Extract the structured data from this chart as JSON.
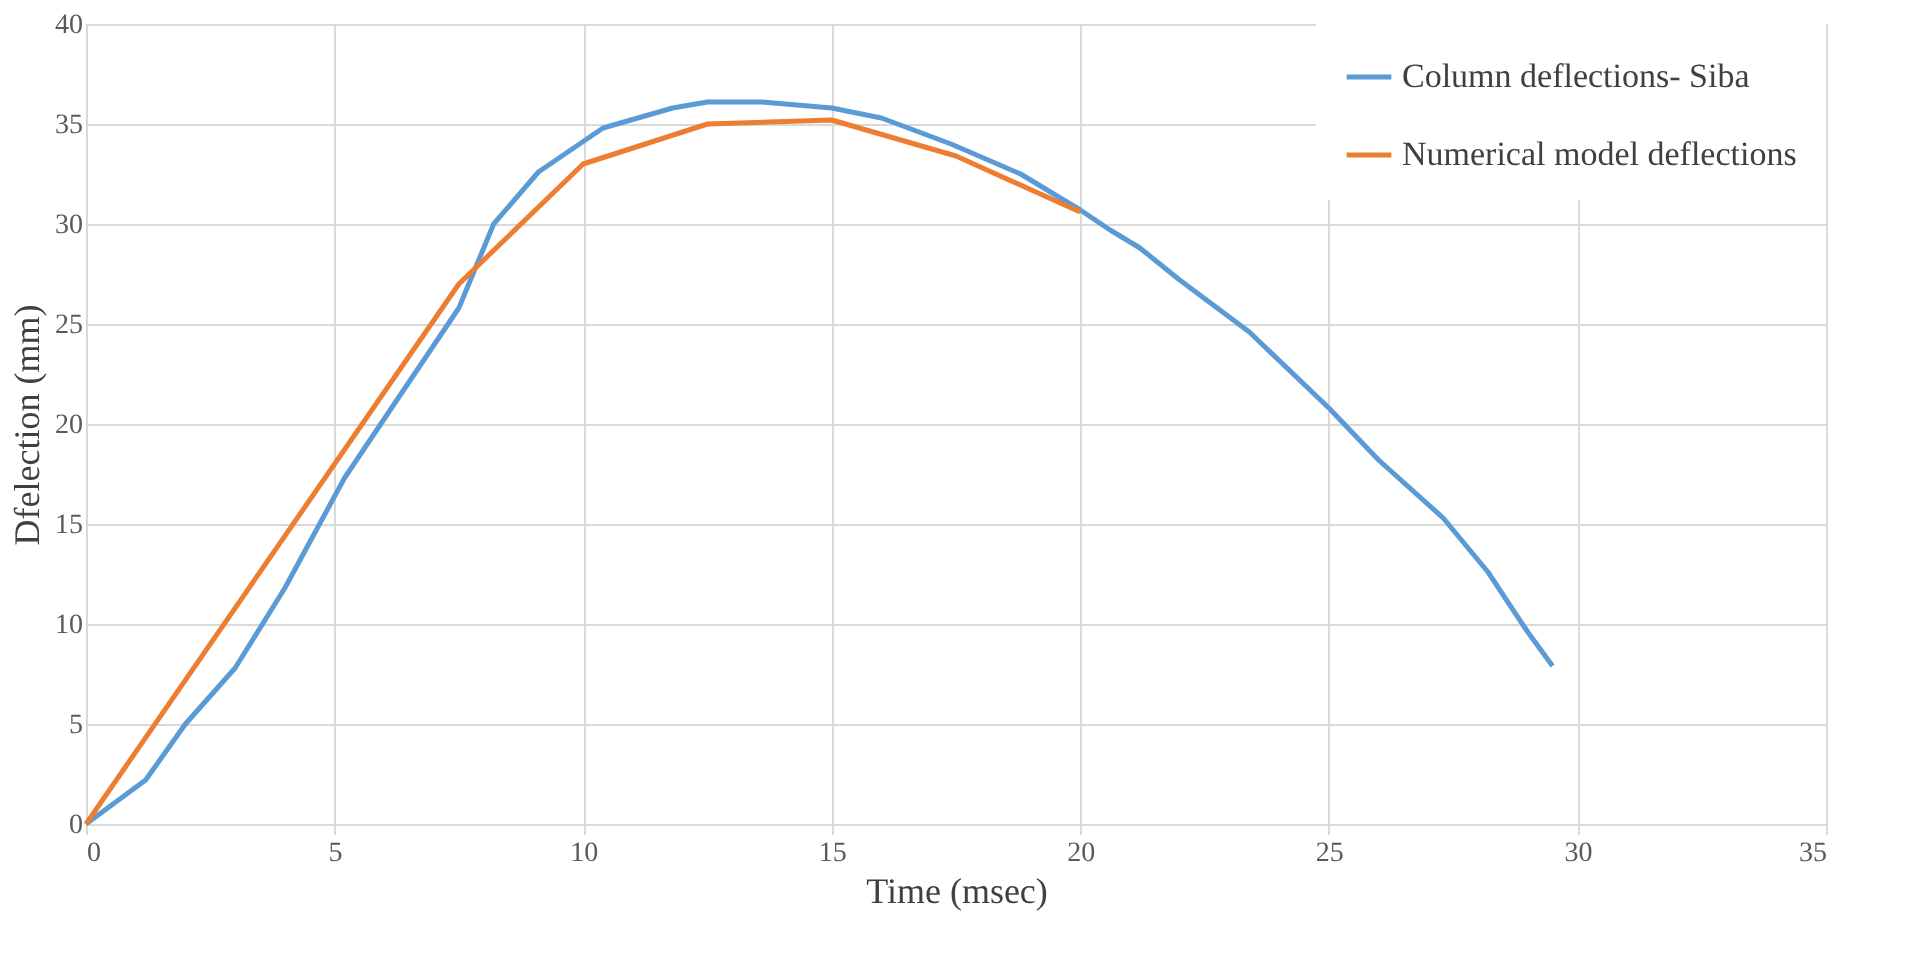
{
  "chart_data": {
    "type": "line",
    "xlabel": "Time (msec)",
    "ylabel": "Dfelection (mm)",
    "xlim": [
      0,
      35
    ],
    "xticks": [
      0,
      5,
      10,
      15,
      20,
      25,
      30,
      35
    ],
    "ylim": [
      0,
      40
    ],
    "yticks": [
      0,
      5,
      10,
      15,
      20,
      25,
      30,
      35,
      40
    ],
    "grid": true,
    "legend": "top right",
    "marker": "none",
    "line_style": "solid",
    "series": [
      {
        "name": "Column deflections- Siba",
        "color": "#5b9bd5",
        "x": [
          0,
          1.2,
          2,
          3,
          4,
          5.2,
          6.2,
          7.5,
          8.2,
          9.1,
          10.4,
          11.8,
          12.5,
          13.6,
          15,
          16,
          17.4,
          18.8,
          20,
          20.6,
          21.2,
          22,
          23.4,
          25,
          26,
          27.3,
          28.2,
          29,
          29.5
        ],
        "values": [
          0,
          2.2,
          5,
          7.8,
          11.8,
          17.3,
          21,
          25.8,
          30,
          32.6,
          34.8,
          35.8,
          36.1,
          36.1,
          35.8,
          35.3,
          34,
          32.5,
          30.7,
          29.7,
          28.8,
          27.2,
          24.6,
          20.8,
          18.2,
          15.3,
          12.6,
          9.6,
          7.9
        ]
      },
      {
        "name": "Numerical model deflections",
        "color": "#ed7d31",
        "x": [
          0,
          7.5,
          10,
          12.5,
          15,
          17.5,
          20
        ],
        "values": [
          0,
          27,
          33,
          35,
          35.2,
          33.4,
          30.6
        ]
      }
    ]
  }
}
